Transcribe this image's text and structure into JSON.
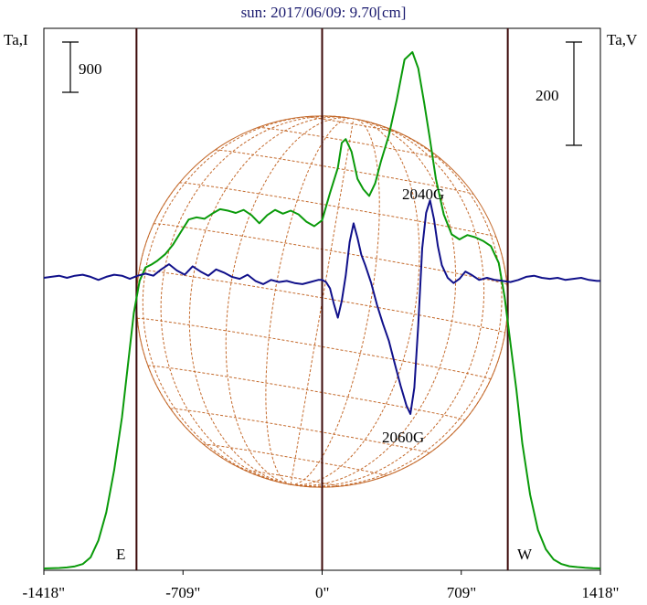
{
  "title": "sun: 2017/06/09: 9.70[cm]",
  "colors": {
    "title": "#1a1a6e",
    "frame": "#000000",
    "limb": "#3c0a0a",
    "grid": "#c46a2c",
    "intensity": "#0a9a0a",
    "polarization": "#10108a"
  },
  "chart_data": {
    "type": "line",
    "title": "sun: 2017/06/09: 9.70[cm]",
    "xlabel": "",
    "x_unit": "arcsec",
    "xlim": [
      -1418,
      1418
    ],
    "x_ticks": [
      -1418,
      -709,
      0,
      709,
      1418
    ],
    "x_tick_labels": [
      "-1418\"",
      "-709\"",
      "0\"",
      "709\"",
      "1418\""
    ],
    "left_axis_label": "Ta,I",
    "right_axis_label": "Ta,V",
    "left_scale_bar": "900",
    "right_scale_bar": "200",
    "limb_markers": [
      {
        "label": "E",
        "x": -946
      },
      {
        "label": "W",
        "x": 946
      }
    ],
    "annotations": [
      "2040G",
      "2060G"
    ],
    "grid": true,
    "series": [
      {
        "key": "intensity",
        "axis": "left",
        "x": [
          -1418,
          -1380,
          -1340,
          -1300,
          -1260,
          -1220,
          -1180,
          -1140,
          -1100,
          -1060,
          -1020,
          -990,
          -960,
          -930,
          -900,
          -870,
          -840,
          -800,
          -760,
          -720,
          -680,
          -640,
          -600,
          -560,
          -520,
          -480,
          -440,
          -400,
          -360,
          -320,
          -280,
          -240,
          -200,
          -160,
          -120,
          -80,
          -40,
          0,
          40,
          80,
          100,
          120,
          150,
          180,
          210,
          240,
          270,
          300,
          340,
          380,
          420,
          460,
          490,
          520,
          550,
          580,
          620,
          660,
          700,
          740,
          780,
          820,
          860,
          900,
          930,
          960,
          990,
          1020,
          1060,
          1100,
          1140,
          1180,
          1220,
          1260,
          1300,
          1340,
          1380,
          1418
        ],
        "values": [
          0,
          2,
          6,
          14,
          28,
          60,
          150,
          380,
          760,
          1330,
          2050,
          2750,
          3460,
          3900,
          4080,
          4120,
          4170,
          4260,
          4390,
          4560,
          4730,
          4760,
          4740,
          4810,
          4870,
          4850,
          4820,
          4860,
          4790,
          4680,
          4790,
          4860,
          4810,
          4850,
          4800,
          4700,
          4640,
          4720,
          5090,
          5430,
          5770,
          5820,
          5650,
          5280,
          5140,
          5050,
          5220,
          5520,
          5870,
          6350,
          6900,
          7000,
          6780,
          6310,
          5810,
          5280,
          4800,
          4530,
          4460,
          4520,
          4490,
          4440,
          4370,
          4140,
          3680,
          3050,
          2420,
          1700,
          1000,
          520,
          260,
          120,
          60,
          30,
          18,
          10,
          4,
          0
        ]
      },
      {
        "key": "polarization",
        "axis": "right",
        "x": [
          -1418,
          -1380,
          -1340,
          -1300,
          -1260,
          -1220,
          -1180,
          -1140,
          -1100,
          -1060,
          -1020,
          -980,
          -940,
          -900,
          -860,
          -820,
          -780,
          -740,
          -700,
          -660,
          -620,
          -580,
          -540,
          -500,
          -460,
          -420,
          -380,
          -340,
          -300,
          -260,
          -220,
          -180,
          -140,
          -100,
          -60,
          -20,
          0,
          20,
          40,
          60,
          80,
          100,
          120,
          140,
          160,
          180,
          200,
          220,
          250,
          280,
          310,
          340,
          370,
          400,
          430,
          450,
          470,
          490,
          510,
          530,
          550,
          570,
          590,
          610,
          640,
          670,
          700,
          730,
          760,
          800,
          840,
          880,
          920,
          960,
          1000,
          1040,
          1080,
          1120,
          1160,
          1200,
          1240,
          1280,
          1320,
          1360,
          1400,
          1418
        ],
        "values": [
          0,
          1,
          2,
          0,
          2,
          3,
          1,
          -2,
          1,
          3,
          2,
          -1,
          2,
          4,
          2,
          8,
          13,
          7,
          3,
          11,
          6,
          2,
          8,
          5,
          1,
          -1,
          3,
          -3,
          -6,
          -2,
          -4,
          -3,
          -5,
          -6,
          -4,
          -2,
          -2,
          -4,
          -10,
          -25,
          -38,
          -22,
          2,
          34,
          52,
          38,
          22,
          12,
          -5,
          -26,
          -44,
          -60,
          -82,
          -103,
          -122,
          -130,
          -105,
          -45,
          28,
          62,
          74,
          56,
          30,
          12,
          0,
          -5,
          -1,
          6,
          3,
          -2,
          0,
          -2,
          -3,
          -4,
          -2,
          1,
          2,
          0,
          -1,
          0,
          -2,
          -1,
          0,
          -2,
          -3,
          -3
        ]
      }
    ]
  }
}
